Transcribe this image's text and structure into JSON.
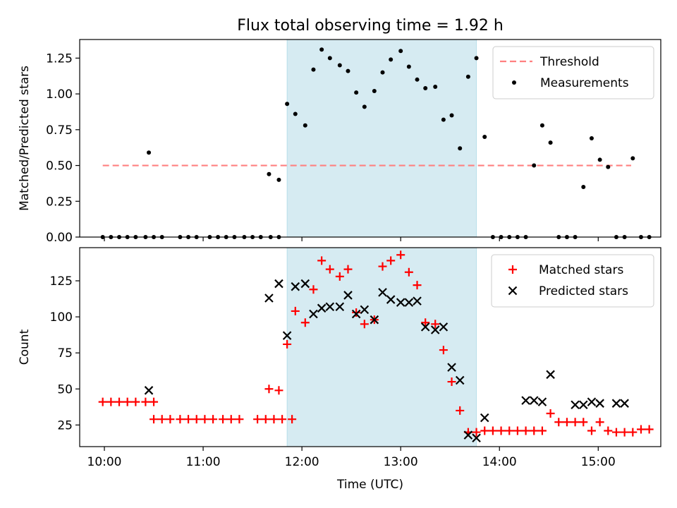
{
  "figure": {
    "title": "Flux total observing time = 1.92 h"
  },
  "chart_data": [
    {
      "type": "scatter",
      "panel": "top",
      "title": "Flux total observing time = 1.92 h",
      "xlabel": "",
      "ylabel": "Matched/Predicted stars",
      "xlim": [
        "09:45",
        "15:38"
      ],
      "ylim": [
        0,
        1.38
      ],
      "yticks": [
        "0.00",
        "0.25",
        "0.50",
        "0.75",
        "1.00",
        "1.25"
      ],
      "xticks": [
        "10:00",
        "11:00",
        "12:00",
        "13:00",
        "14:00",
        "15:00"
      ],
      "show_xticklabels": false,
      "grid": false,
      "legend": "upper right",
      "shaded_interval": {
        "start": "11:51",
        "end": "13:46",
        "color": "#add8e6"
      },
      "threshold": {
        "name": "Threshold",
        "value": 0.5,
        "x_start": "09:59",
        "x_end": "15:20",
        "color": "#ff8080",
        "style": "dashed"
      },
      "series": [
        {
          "name": "Measurements",
          "color": "#000000",
          "marker": "dot",
          "x": [
            "09:59",
            "10:04",
            "10:09",
            "10:14",
            "10:19",
            "10:25",
            "10:30",
            "10:35",
            "10:46",
            "10:51",
            "10:56",
            "11:04",
            "11:09",
            "11:14",
            "11:19",
            "11:25",
            "11:30",
            "11:35",
            "11:41",
            "11:46",
            "11:51",
            "11:56",
            "12:02",
            "12:07",
            "12:12",
            "12:17",
            "12:23",
            "12:28",
            "12:33",
            "12:38",
            "12:44",
            "12:49",
            "12:54",
            "13:00",
            "13:05",
            "13:10",
            "13:15",
            "13:21",
            "13:26",
            "13:31",
            "13:36",
            "13:41",
            "13:46",
            "13:51",
            "13:56",
            "14:01",
            "14:06",
            "14:11",
            "14:16",
            "14:21",
            "14:26",
            "14:31",
            "14:36",
            "14:41",
            "14:46",
            "14:51",
            "14:56",
            "15:01",
            "15:06",
            "15:11",
            "15:16",
            "15:21",
            "15:26",
            "15:31"
          ],
          "y": [
            0,
            0,
            0,
            0,
            0,
            0,
            0,
            0,
            0,
            0,
            0,
            0,
            0,
            0,
            0,
            0,
            0,
            0,
            0,
            0,
            0.93,
            0.86,
            0.78,
            1.17,
            1.31,
            1.25,
            1.2,
            1.16,
            1.01,
            0.91,
            1.02,
            1.15,
            1.24,
            1.3,
            1.19,
            1.1,
            1.04,
            1.05,
            0.82,
            0.85,
            0.62,
            1.12,
            1.25,
            0.7,
            0,
            0,
            0,
            0,
            0,
            0.5,
            0.78,
            0.66,
            0,
            0,
            0,
            0.35,
            0.69,
            0.54,
            0.49,
            0,
            0,
            0.55,
            0,
            0
          ]
        }
      ],
      "note_points": {
        "x": [
          "10:27",
          "11:40",
          "11:46"
        ],
        "y": [
          0.59,
          0.44,
          0.4
        ]
      }
    },
    {
      "type": "scatter",
      "panel": "bottom",
      "xlabel": "Time (UTC)",
      "ylabel": "Count",
      "xlim": [
        "09:45",
        "15:38"
      ],
      "ylim": [
        10,
        148
      ],
      "yticks": [
        "25",
        "50",
        "75",
        "100",
        "125"
      ],
      "xticks": [
        "10:00",
        "11:00",
        "12:00",
        "13:00",
        "14:00",
        "15:00"
      ],
      "grid": false,
      "legend": "upper right",
      "shaded_interval": {
        "start": "11:51",
        "end": "13:46",
        "color": "#add8e6"
      },
      "series": [
        {
          "name": "Matched stars",
          "color": "#ff0000",
          "marker": "plus",
          "x": [
            "09:59",
            "10:04",
            "10:09",
            "10:14",
            "10:19",
            "10:25",
            "10:30",
            "10:30",
            "10:35",
            "10:40",
            "10:46",
            "10:51",
            "10:56",
            "11:01",
            "11:06",
            "11:12",
            "11:17",
            "11:22",
            "11:33",
            "11:38",
            "11:43",
            "11:48",
            "11:54",
            "11:40",
            "11:46",
            "11:51",
            "11:56",
            "12:02",
            "12:07",
            "12:12",
            "12:17",
            "12:23",
            "12:28",
            "12:33",
            "12:38",
            "12:44",
            "12:49",
            "12:54",
            "13:00",
            "13:05",
            "13:10",
            "13:15",
            "13:21",
            "13:26",
            "13:31",
            "13:36",
            "13:41",
            "13:46",
            "13:51",
            "13:56",
            "14:01",
            "14:06",
            "14:11",
            "14:16",
            "14:21",
            "14:26",
            "14:31",
            "14:36",
            "14:41",
            "14:46",
            "14:51",
            "14:56",
            "15:01",
            "15:06",
            "15:11",
            "15:16",
            "15:21",
            "15:26",
            "15:31"
          ],
          "y": [
            41,
            41,
            41,
            41,
            41,
            41,
            41,
            29,
            29,
            29,
            29,
            29,
            29,
            29,
            29,
            29,
            29,
            29,
            29,
            29,
            29,
            29,
            29,
            50,
            49,
            81,
            104,
            96,
            119,
            139,
            133,
            128,
            133,
            103,
            95,
            98,
            135,
            139,
            143,
            131,
            122,
            96,
            95,
            77,
            55,
            35,
            20,
            20,
            21,
            21,
            21,
            21,
            21,
            21,
            21,
            21,
            33,
            27,
            27,
            27,
            27,
            21,
            27,
            21,
            20,
            20,
            20,
            22,
            22
          ]
        },
        {
          "name": "Predicted stars",
          "color": "#000000",
          "marker": "x",
          "x": [
            "10:27",
            "11:40",
            "11:46",
            "11:51",
            "11:56",
            "12:02",
            "12:07",
            "12:12",
            "12:17",
            "12:23",
            "12:28",
            "12:33",
            "12:38",
            "12:44",
            "12:49",
            "12:54",
            "13:00",
            "13:05",
            "13:10",
            "13:15",
            "13:21",
            "13:26",
            "13:31",
            "13:36",
            "13:41",
            "13:46",
            "13:51",
            "14:16",
            "14:21",
            "14:26",
            "14:31",
            "14:46",
            "14:51",
            "14:56",
            "15:01",
            "15:11",
            "15:16"
          ],
          "y": [
            49,
            113,
            123,
            87,
            121,
            123,
            102,
            106,
            107,
            107,
            115,
            102,
            105,
            98,
            117,
            112,
            110,
            110,
            111,
            93,
            91,
            93,
            65,
            56,
            18,
            16,
            30,
            42,
            42,
            41,
            60,
            39,
            39,
            41,
            40,
            40,
            40
          ]
        }
      ]
    }
  ]
}
